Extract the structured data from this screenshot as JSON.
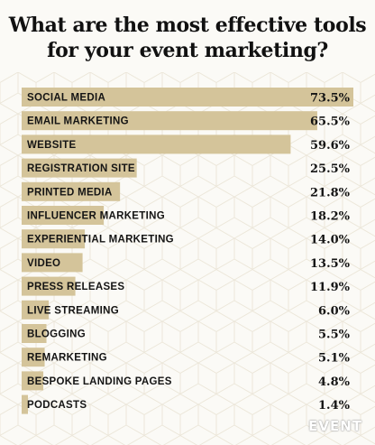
{
  "header": {
    "title_line1": "What are the most effective tools",
    "title_line2": "for your event marketing?"
  },
  "brand": {
    "logo_text": "EVENT"
  },
  "colors": {
    "bar": "#d4c49a",
    "background": "#fbfaf6",
    "text": "#141414"
  },
  "chart_data": {
    "type": "bar",
    "orientation": "horizontal",
    "title": "What are the most effective tools for your event marketing?",
    "categories": [
      "SOCIAL MEDIA",
      "EMAIL MARKETING",
      "WEBSITE",
      "REGISTRATION SITE",
      "PRINTED MEDIA",
      "INFLUENCER MARKETING",
      "EXPERIENTIAL MARKETING",
      "VIDEO",
      "PRESS RELEASES",
      "LIVE STREAMING",
      "BLOGGING",
      "REMARKETING",
      "BESPOKE LANDING PAGES",
      "PODCASTS"
    ],
    "values": [
      73.5,
      65.5,
      59.6,
      25.5,
      21.8,
      18.2,
      14.0,
      13.5,
      11.9,
      6.0,
      5.5,
      5.1,
      4.8,
      1.4
    ],
    "value_labels": [
      "73.5%",
      "65.5%",
      "59.6%",
      "25.5%",
      "21.8%",
      "18.2%",
      "14.0%",
      "13.5%",
      "11.9%",
      "6.0%",
      "5.5%",
      "5.1%",
      "4.8%",
      "1.4%"
    ],
    "unit": "%",
    "xlim": [
      0,
      73.5
    ],
    "grid": false,
    "legend": "none"
  }
}
